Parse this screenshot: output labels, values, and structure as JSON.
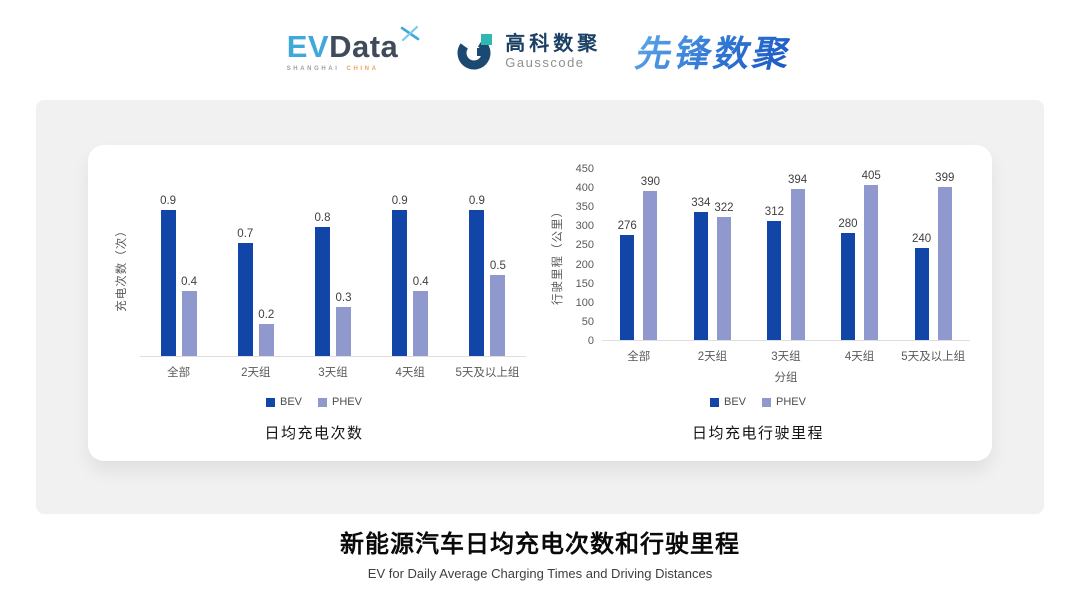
{
  "logos": {
    "evdata": {
      "ev": "EV",
      "data": "Data",
      "sub_left": "SHANGHAI",
      "sub_right": "CHINA"
    },
    "gausscode": {
      "cn": "高科数聚",
      "en": "Gausscode"
    },
    "xianfeng": {
      "text": "先锋数聚"
    }
  },
  "colors": {
    "bev": "#1245A8",
    "phev": "#8F99CE",
    "panel_bg": "#F1F1F1",
    "card_bg": "#FFFFFF",
    "axis_line": "#DEDEDE",
    "tick_text": "#595959",
    "value_label": "#404040",
    "evdata_blue": "#41A8DC",
    "evdata_navy": "#3F4B5B",
    "gausscode_navy": "#1C4065",
    "gausscode_teal": "#2FB8B2",
    "xianfeng_blue": "#2E74D4"
  },
  "chart_data": [
    {
      "type": "bar",
      "title": "日均充电次数",
      "ylabel": "充电次数（次）",
      "xlabel": "",
      "categories": [
        "全部",
        "2天组",
        "3天组",
        "4天组",
        "5天及以上组"
      ],
      "series": [
        {
          "name": "BEV",
          "color": "#1245A8",
          "values": [
            0.9,
            0.7,
            0.8,
            0.9,
            0.9
          ]
        },
        {
          "name": "PHEV",
          "color": "#8F99CE",
          "values": [
            0.4,
            0.2,
            0.3,
            0.4,
            0.5
          ]
        }
      ],
      "ylim": [
        0,
        1.1
      ],
      "yticks": [],
      "grid": false,
      "legend_position": "bottom"
    },
    {
      "type": "bar",
      "title": "日均充电行驶里程",
      "ylabel": "行驶里程（公里）",
      "xlabel": "分组",
      "categories": [
        "全部",
        "2天组",
        "3天组",
        "4天组",
        "5天及以上组"
      ],
      "series": [
        {
          "name": "BEV",
          "color": "#1245A8",
          "values": [
            276,
            334,
            312,
            280,
            240
          ]
        },
        {
          "name": "PHEV",
          "color": "#8F99CE",
          "values": [
            390,
            322,
            394,
            405,
            399
          ]
        }
      ],
      "ylim": [
        0,
        450
      ],
      "yticks": [
        0,
        50,
        100,
        150,
        200,
        250,
        300,
        350,
        400,
        450
      ],
      "grid": false,
      "legend_position": "bottom"
    }
  ],
  "footer": {
    "title": "新能源汽车日均充电次数和行驶里程",
    "subtitle": "EV for Daily Average Charging Times and Driving Distances"
  }
}
